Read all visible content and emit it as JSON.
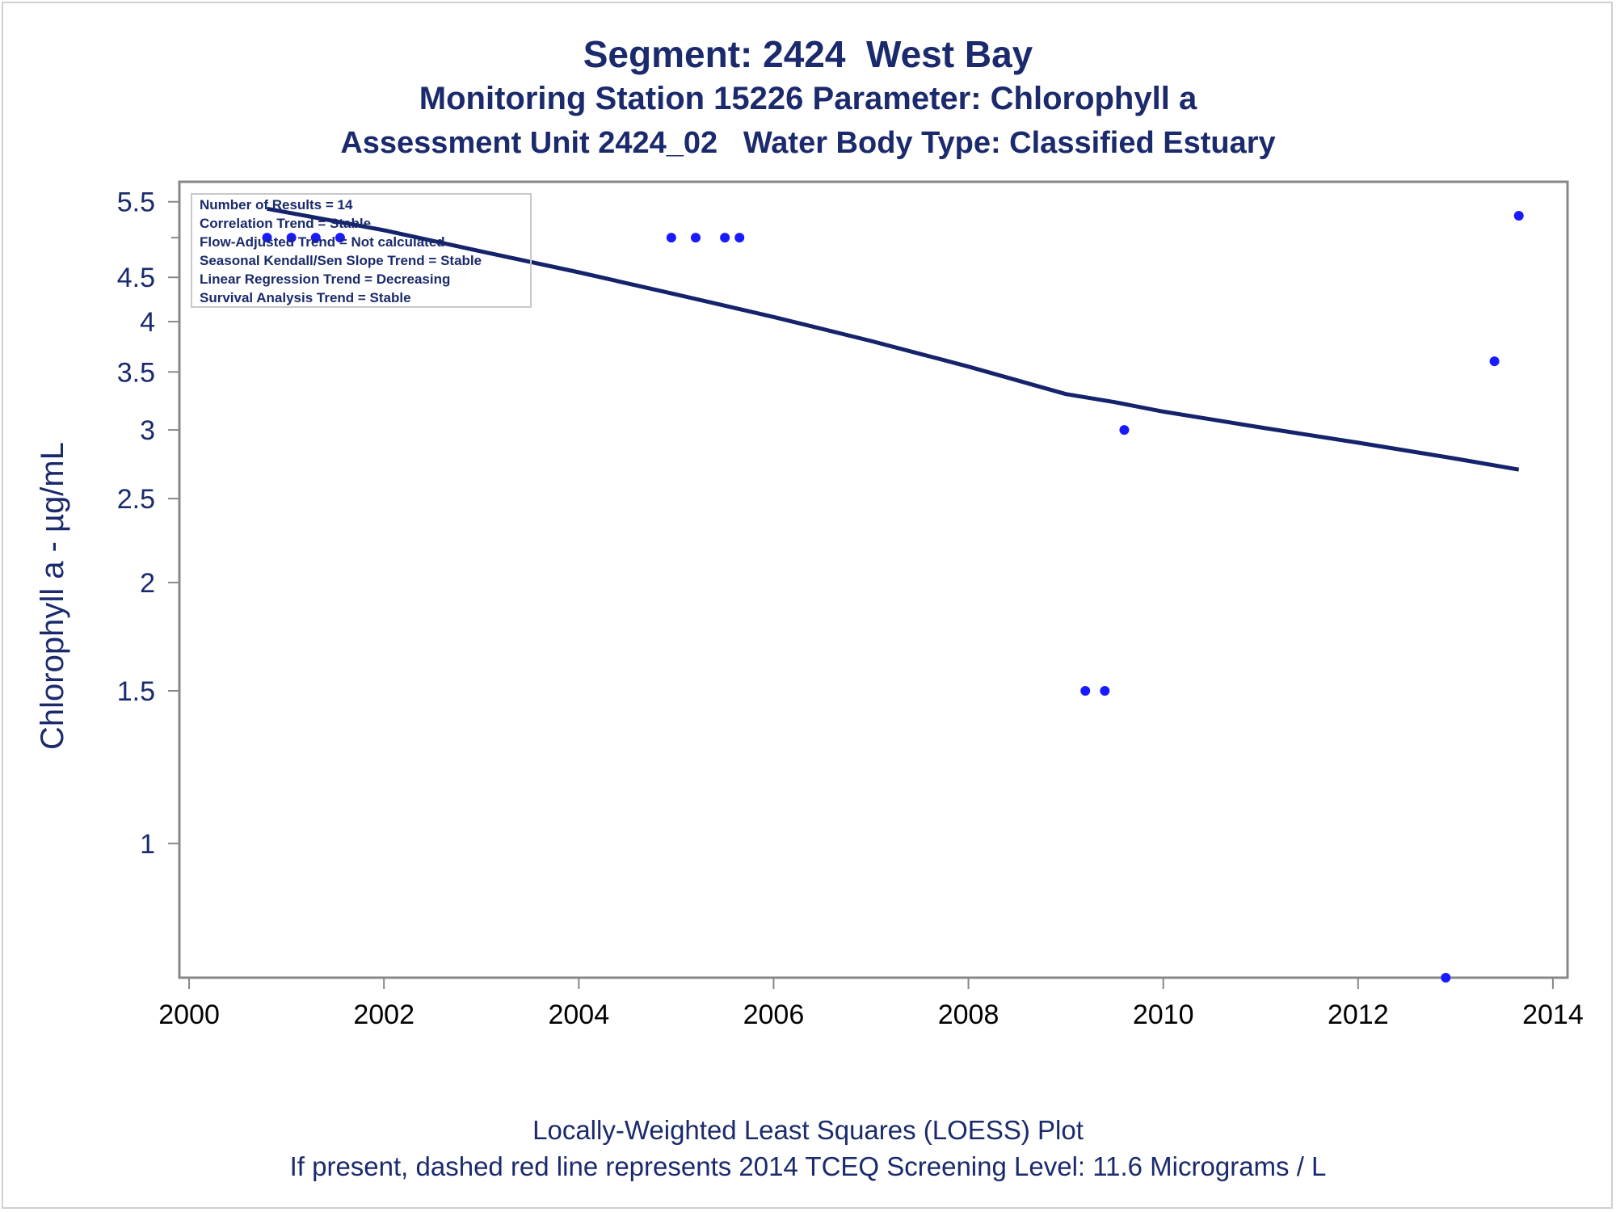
{
  "titles": {
    "line1": "Segment: 2424  West Bay",
    "line2": "Monitoring Station 15226 Parameter: Chlorophyll a",
    "line3": "Assessment Unit 2424_02   Water Body Type: Classified Estuary"
  },
  "stats_box": {
    "lines": [
      "Number of Results = 14",
      "Correlation Trend = Stable",
      "Flow-Adjusted Trend = Not calculated",
      "Seasonal Kendall/Sen Slope Trend = Stable",
      "Linear Regression Trend = Decreasing",
      "Survival Analysis Trend = Stable"
    ]
  },
  "footnotes": {
    "line1": "Locally-Weighted Least Squares (LOESS) Plot",
    "line2": "If present, dashed red line represents 2014 TCEQ Screening Level: 11.6 Micrograms / L"
  },
  "colors": {
    "text": "#1a2a6c",
    "points": "#1a1aff",
    "loess_line": "#14236b",
    "axis": "#888888"
  },
  "chart_data": {
    "type": "scatter",
    "y_scale": "log",
    "ylabel": "Chlorophyll a -  µg/mL",
    "xlabel": "",
    "x_ticks": [
      2000,
      2002,
      2004,
      2006,
      2008,
      2010,
      2012,
      2014
    ],
    "y_ticks": [
      1,
      1.5,
      2,
      2.5,
      3,
      3.5,
      4,
      4.5,
      5.5
    ],
    "xlim": [
      1999.9,
      2014.15
    ],
    "ylim": [
      0.7,
      5.8
    ],
    "grid": false,
    "points": [
      {
        "x": 2000.8,
        "y": 5.0
      },
      {
        "x": 2001.05,
        "y": 5.0
      },
      {
        "x": 2001.3,
        "y": 5.0
      },
      {
        "x": 2001.55,
        "y": 5.0
      },
      {
        "x": 2004.95,
        "y": 5.0
      },
      {
        "x": 2005.2,
        "y": 5.0
      },
      {
        "x": 2005.5,
        "y": 5.0
      },
      {
        "x": 2005.65,
        "y": 5.0
      },
      {
        "x": 2009.2,
        "y": 1.5
      },
      {
        "x": 2009.4,
        "y": 1.5
      },
      {
        "x": 2009.6,
        "y": 3.0
      },
      {
        "x": 2012.9,
        "y": 0.7
      },
      {
        "x": 2013.4,
        "y": 3.6
      },
      {
        "x": 2013.65,
        "y": 5.3
      }
    ],
    "loess_line": {
      "x": [
        2000.8,
        2002,
        2003,
        2004,
        2005,
        2006,
        2007,
        2008,
        2009,
        2009.5,
        2010,
        2011,
        2012,
        2013,
        2013.65
      ],
      "y": [
        5.4,
        5.1,
        4.82,
        4.56,
        4.3,
        4.05,
        3.8,
        3.55,
        3.3,
        3.23,
        3.15,
        3.02,
        2.9,
        2.78,
        2.7
      ]
    }
  }
}
